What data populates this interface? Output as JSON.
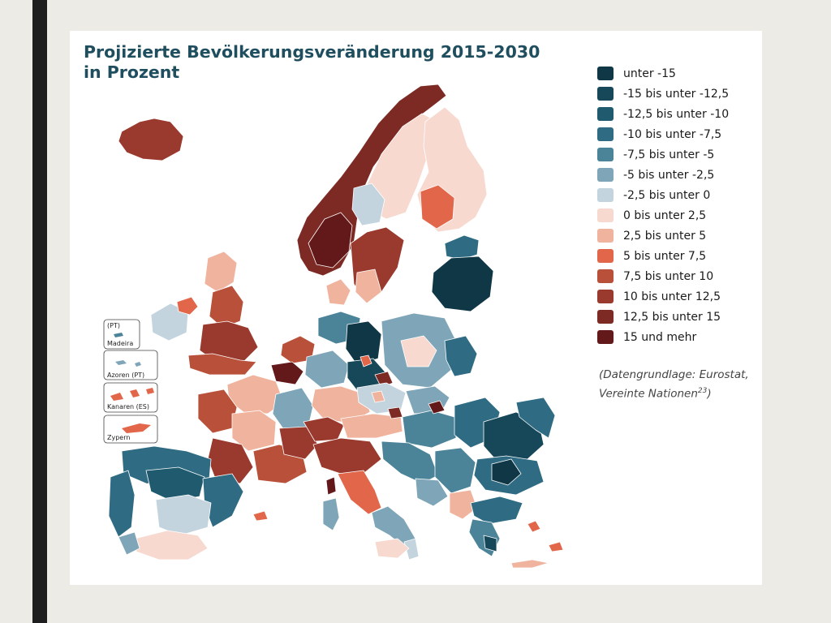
{
  "title": {
    "line1": "Projizierte Bevölkerungsveränderung 2015-2030",
    "line2": "in Prozent"
  },
  "legend": [
    {
      "label": "unter -15",
      "color": "#0f3746"
    },
    {
      "label": "-15 bis unter -12,5",
      "color": "#17485a"
    },
    {
      "label": "-12,5 bis unter -10",
      "color": "#1f5a6e"
    },
    {
      "label": "-10 bis unter -7,5",
      "color": "#2f6c83"
    },
    {
      "label": "-7,5 bis unter -5",
      "color": "#4b8399"
    },
    {
      "label": "-5 bis unter -2,5",
      "color": "#7ea6b8"
    },
    {
      "label": "-2,5 bis unter 0",
      "color": "#c3d4de"
    },
    {
      "label": "0 bis unter 2,5",
      "color": "#f7d9cf"
    },
    {
      "label": "2,5 bis unter 5",
      "color": "#f0b39e"
    },
    {
      "label": "5 bis unter 7,5",
      "color": "#e2674a"
    },
    {
      "label": "7,5 bis unter 10",
      "color": "#b9513a"
    },
    {
      "label": "10 bis unter 12,5",
      "color": "#9a3a2e"
    },
    {
      "label": "12,5 bis unter 15",
      "color": "#7d2a24"
    },
    {
      "label": "15 und mehr",
      "color": "#63191a"
    }
  ],
  "source": {
    "line1": "(Datengrundlage: Eurostat,",
    "line2": "Vereinte Nationen",
    "footnote": "23",
    "line2_end": ")"
  },
  "insets": {
    "madeira": "Madeira",
    "madeira_country": "(PT)",
    "azoren": "Azoren (PT)",
    "kanaren": "Kanaren (ES)",
    "zypern": "Zypern"
  },
  "colors": {
    "background": "#ecebe6",
    "side_bar": "#1e1e1e",
    "title": "#1f4e5f"
  }
}
